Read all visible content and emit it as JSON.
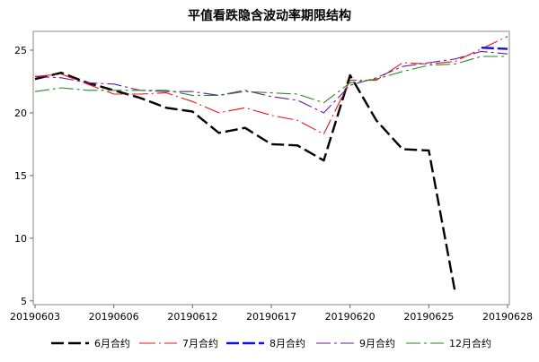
{
  "chart_data": {
    "type": "line",
    "title": "平值看跌隐含波动率期限结构",
    "xlabel": "",
    "ylabel": "",
    "ylim": [
      4.7,
      26.5
    ],
    "grid": false,
    "legend_position": "bottom",
    "x": [
      "20190603",
      "20190604",
      "20190605",
      "20190606",
      "20190610",
      "20190611",
      "20190612",
      "20190613",
      "20190614",
      "20190617",
      "20190618",
      "20190619",
      "20190620",
      "20190621",
      "20190624",
      "20190625",
      "20190626",
      "20190627",
      "20190628"
    ],
    "x_tick_labels": [
      "20190603",
      "20190606",
      "20190612",
      "20190617",
      "20190620",
      "20190625",
      "20190628"
    ],
    "y_ticks": [
      5,
      10,
      15,
      20,
      25
    ],
    "series": [
      {
        "name": "6月合约",
        "color": "#000000",
        "values": [
          22.7,
          23.2,
          22.4,
          21.8,
          21.2,
          20.4,
          20.1,
          18.4,
          18.8,
          17.5,
          17.4,
          16.2,
          23.0,
          19.4,
          17.1,
          17.0,
          5.7,
          null,
          null
        ]
      },
      {
        "name": "7月合约",
        "color": "#e8151b",
        "values": [
          22.9,
          23.1,
          22.3,
          21.5,
          21.5,
          21.6,
          20.9,
          20.0,
          20.4,
          19.8,
          19.4,
          18.3,
          22.6,
          22.6,
          24.0,
          23.9,
          24.1,
          25.1,
          26.1
        ]
      },
      {
        "name": "8月合约",
        "color": "#1010e8",
        "values": [
          null,
          null,
          null,
          null,
          null,
          null,
          null,
          null,
          null,
          null,
          null,
          null,
          null,
          null,
          null,
          null,
          null,
          25.2,
          25.1
        ]
      },
      {
        "name": "9月合约",
        "color": "#6a1b9a",
        "values": [
          22.9,
          22.8,
          22.4,
          22.3,
          21.8,
          21.7,
          21.7,
          21.4,
          21.8,
          21.3,
          21.0,
          20.0,
          22.2,
          22.8,
          23.7,
          24.0,
          24.3,
          24.9,
          24.7
        ]
      },
      {
        "name": "12月合约",
        "color": "#228b22",
        "values": [
          21.7,
          22.0,
          21.8,
          21.8,
          21.8,
          21.8,
          21.4,
          21.4,
          21.7,
          21.6,
          21.5,
          20.8,
          22.4,
          22.7,
          23.3,
          23.8,
          23.9,
          24.5,
          24.5
        ]
      }
    ]
  }
}
